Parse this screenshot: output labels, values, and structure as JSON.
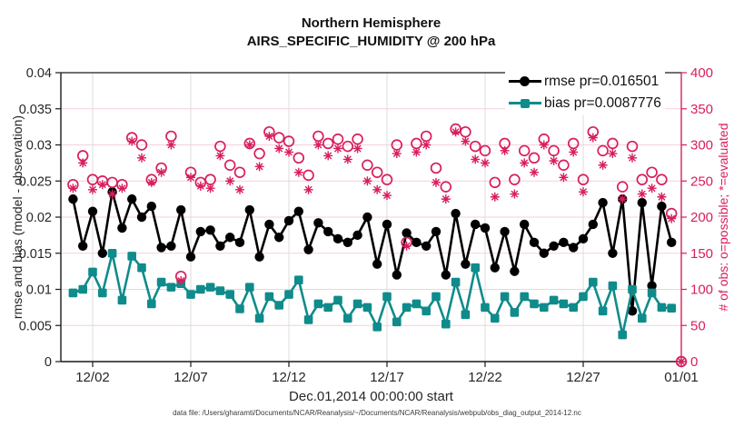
{
  "title": {
    "line1": "Northern Hemisphere",
    "line2": "AIRS_SPECIFIC_HUMIDITY @ 200 hPa"
  },
  "xlabel": "Dec.01,2014 00:00:00 start",
  "footer": "data file: /Users/gharamti/Documents/NCAR/Reanalysis/~/Documents/NCAR/Reanalysis/webpub/obs_diag_output_2014-12.nc",
  "legend": {
    "rmse_label": "rmse pr=0.016501",
    "bias_label": "bias pr=0.0087776"
  },
  "colors": {
    "rmse": "#000000",
    "bias": "#0f8b8b",
    "obs": "#d81e5e",
    "grid_h": "#f5d0da",
    "grid_v": "#dcdcdc",
    "axis": "#1a1a1a",
    "tick_text": "#262626"
  },
  "chart_data": {
    "type": "line",
    "title": "Northern Hemisphere",
    "subtitle": "AIRS_SPECIFIC_HUMIDITY @ 200 hPa",
    "xlabel": "Dec.01,2014 00:00:00 start",
    "x_axis": {
      "min": -0.62,
      "max": 31,
      "ticks": [
        {
          "day": 1,
          "label": "12/02"
        },
        {
          "day": 6,
          "label": "12/07"
        },
        {
          "day": 11,
          "label": "12/12"
        },
        {
          "day": 16,
          "label": "12/17"
        },
        {
          "day": 21,
          "label": "12/22"
        },
        {
          "day": 26,
          "label": "12/27"
        },
        {
          "day": 31,
          "label": "01/01"
        }
      ]
    },
    "left_axis": {
      "label": "rmse and bias (model - observation)",
      "min": 0,
      "max": 0.04,
      "tick_labels": [
        "0",
        "0.005",
        "0.01",
        "0.015",
        "0.02",
        "0.025",
        "0.03",
        "0.035",
        "0.04"
      ]
    },
    "right_axis": {
      "label": "# of obs: o=possible; *=evaluated",
      "min": 0,
      "max": 400,
      "tick_labels": [
        "0",
        "50",
        "100",
        "150",
        "200",
        "250",
        "300",
        "350",
        "400"
      ]
    },
    "start_day": 0,
    "time_step_days": 0.5,
    "legend_position": "top-right-inside",
    "grid": true,
    "series": [
      {
        "name": "rmse",
        "axis": "left",
        "marker": "filled-circle",
        "line": true,
        "color_key": "rmse",
        "mean": 0.016501,
        "values": [
          0.0225,
          0.016,
          0.0208,
          0.015,
          0.0235,
          0.0185,
          0.0225,
          0.02,
          0.0215,
          0.0158,
          0.016,
          0.021,
          0.0145,
          0.018,
          0.0182,
          0.016,
          0.0172,
          0.0165,
          0.021,
          0.0145,
          0.019,
          0.0172,
          0.0195,
          0.0208,
          0.0155,
          0.0192,
          0.018,
          0.017,
          0.0165,
          0.0175,
          0.02,
          0.0135,
          0.019,
          0.012,
          0.0178,
          0.0165,
          0.016,
          0.018,
          0.012,
          0.0205,
          0.0135,
          0.019,
          0.0185,
          0.013,
          0.018,
          0.0125,
          0.019,
          0.0165,
          0.015,
          0.016,
          0.0165,
          0.0158,
          0.017,
          0.019,
          0.022,
          0.015,
          0.0225,
          0.007,
          0.022,
          0.0105,
          0.0215,
          0.0165,
          null
        ]
      },
      {
        "name": "bias",
        "axis": "left",
        "marker": "filled-square",
        "line": true,
        "color_key": "bias",
        "mean": 0.0087776,
        "values": [
          0.0095,
          0.01,
          0.0124,
          0.0095,
          0.015,
          0.0085,
          0.0146,
          0.013,
          0.008,
          0.011,
          0.0103,
          0.0108,
          0.0093,
          0.01,
          0.0103,
          0.0098,
          0.0093,
          0.0073,
          0.0103,
          0.006,
          0.009,
          0.0078,
          0.0093,
          0.0113,
          0.0058,
          0.008,
          0.0075,
          0.0085,
          0.006,
          0.008,
          0.0075,
          0.0048,
          0.009,
          0.0055,
          0.0075,
          0.008,
          0.007,
          0.009,
          0.0052,
          0.011,
          0.0065,
          0.013,
          0.0075,
          0.006,
          0.009,
          0.0068,
          0.009,
          0.008,
          0.0075,
          0.0085,
          0.008,
          0.0075,
          0.009,
          0.011,
          0.007,
          0.0105,
          0.0037,
          0.01,
          0.006,
          0.0095,
          0.0075,
          0.0074,
          null
        ]
      },
      {
        "name": "possible",
        "axis": "right",
        "marker": "open-circle",
        "line": false,
        "color_key": "obs",
        "values": [
          245,
          285,
          252,
          250,
          248,
          245,
          310,
          300,
          252,
          268,
          312,
          118,
          262,
          248,
          252,
          298,
          272,
          262,
          302,
          288,
          318,
          310,
          305,
          282,
          258,
          312,
          302,
          308,
          298,
          308,
          272,
          262,
          252,
          300,
          165,
          302,
          312,
          268,
          242,
          322,
          318,
          298,
          292,
          248,
          302,
          252,
          292,
          282,
          308,
          292,
          272,
          302,
          252,
          318,
          292,
          302,
          242,
          298,
          252,
          262,
          252,
          205,
          0
        ]
      },
      {
        "name": "evaluated",
        "axis": "right",
        "marker": "asterisk",
        "line": false,
        "color_key": "obs",
        "values": [
          240,
          275,
          238,
          245,
          232,
          240,
          305,
          282,
          248,
          262,
          300,
          112,
          255,
          243,
          240,
          285,
          250,
          238,
          300,
          270,
          312,
          295,
          290,
          262,
          238,
          300,
          285,
          295,
          280,
          295,
          250,
          238,
          230,
          288,
          160,
          290,
          300,
          248,
          225,
          318,
          305,
          280,
          275,
          228,
          292,
          232,
          275,
          262,
          300,
          278,
          255,
          290,
          235,
          310,
          272,
          288,
          225,
          282,
          232,
          240,
          228,
          198,
          0
        ]
      }
    ]
  }
}
